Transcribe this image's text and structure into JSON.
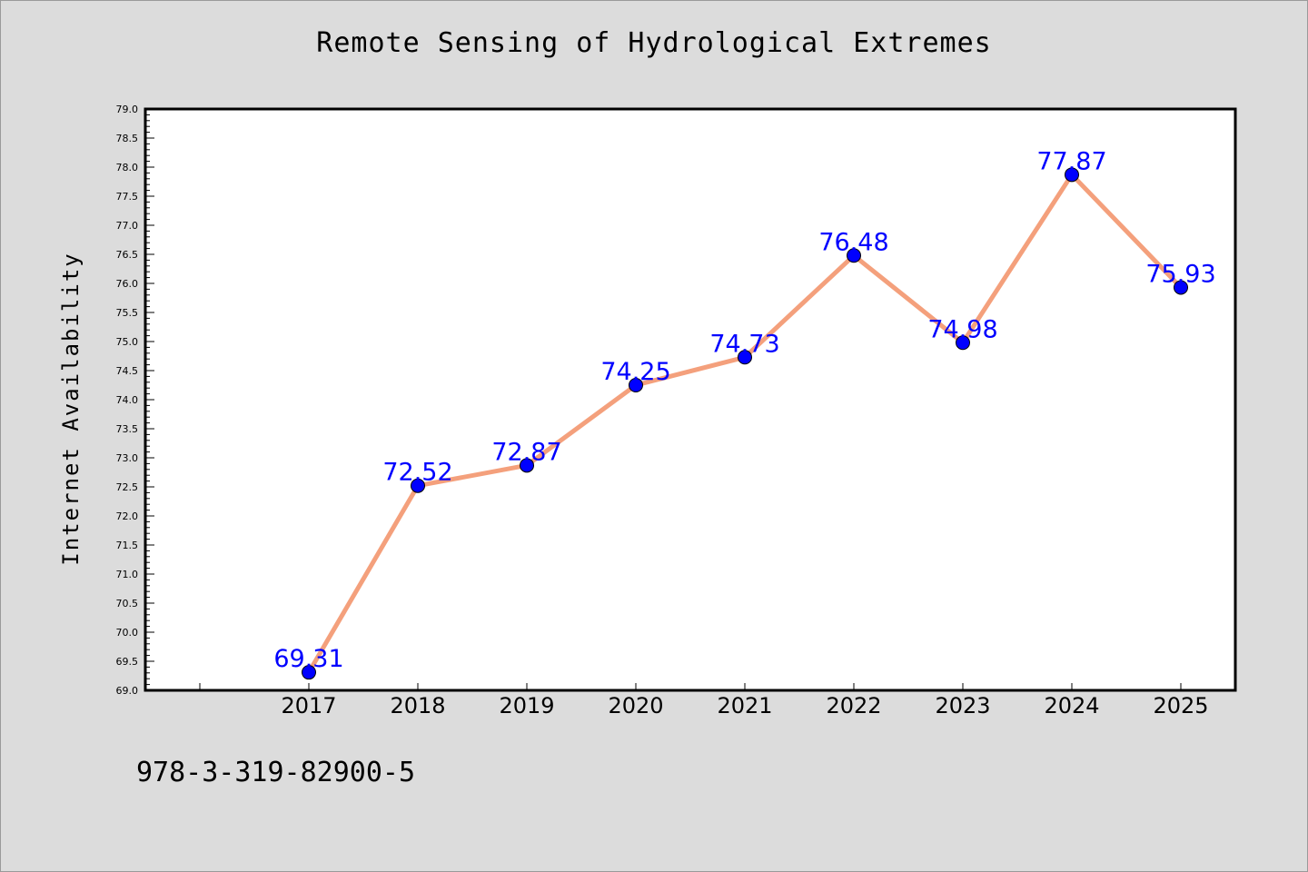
{
  "chart_data": {
    "type": "line",
    "title": "Remote Sensing of Hydrological Extremes",
    "xlabel": "",
    "ylabel": "Internet Availability",
    "x": [
      "2017",
      "2018",
      "2019",
      "2020",
      "2021",
      "2022",
      "2023",
      "2024",
      "2025"
    ],
    "series": [
      {
        "values": [
          69.31,
          72.52,
          72.87,
          74.25,
          74.73,
          76.48,
          74.98,
          77.87,
          75.93
        ],
        "data_labels": [
          "69.31",
          "72.52",
          "72.87",
          "74.25",
          "74.73",
          "76.48",
          "74.98",
          "77.87",
          "75.93"
        ],
        "line_color": "#f4a07c",
        "marker_color": "#0000ff"
      }
    ],
    "ylim": [
      69.0,
      79.0
    ],
    "y_ticks": [
      "69.0",
      "69.5",
      "70.0",
      "70.5",
      "71.0",
      "71.5",
      "72.0",
      "72.5",
      "73.0",
      "73.5",
      "74.0",
      "74.5",
      "75.0",
      "75.5",
      "76.0",
      "76.5",
      "77.0",
      "77.5",
      "78.0",
      "78.5",
      "79.0"
    ],
    "grid": false,
    "legend": "none"
  },
  "footnote": "978-3-319-82900-5",
  "colors": {
    "background": "#dcdcdc",
    "plot_background": "#ffffff",
    "line": "#f4a07c",
    "marker": "#0000ff",
    "data_label": "#0000ff"
  }
}
